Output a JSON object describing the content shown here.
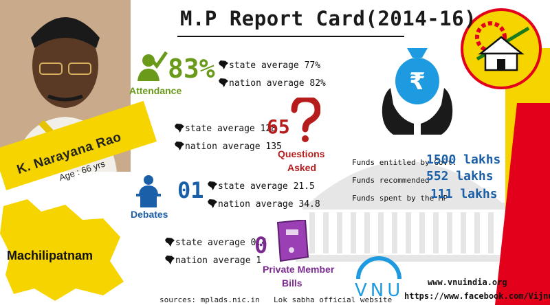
{
  "title": "M.P Report Card(2014-16)",
  "profile": {
    "name": "K. Narayana Rao",
    "age": "Age : 66 yrs",
    "constituency": "Machilipatnam"
  },
  "attendance": {
    "value": "83%",
    "label": "Attendance",
    "state_avg": "state average 77%",
    "nation_avg": "nation average 82%"
  },
  "questions": {
    "value": "65",
    "label_line1": "Questions",
    "label_line2": "Asked",
    "state_avg": "state average 128",
    "nation_avg": "nation average 135"
  },
  "debates": {
    "value": "01",
    "label": "Debates",
    "state_avg": "state average 21.5",
    "nation_avg": "nation average 34.8"
  },
  "bills": {
    "value": "0",
    "label_line1": "Private Member",
    "label_line2": "Bills",
    "state_avg": "state average 0.4",
    "nation_avg": "nation average 1"
  },
  "funds": {
    "entitled_label": "Funds entitled by Govt.",
    "entitled_value": "1500 lakhs",
    "recommended_label": "Funds recommended",
    "recommended_value": "552 lakhs",
    "spent_label": "Funds spent by the MP",
    "spent_value": "111 lakhs"
  },
  "footer": {
    "sources": "sources: mplads.nic.in",
    "loksabha": "Lok sabha official website",
    "website": "www.vnuindia.org",
    "facebook": "https://www.facebook.com/Vijnu",
    "brand": "VNU"
  },
  "colors": {
    "party_yellow": "#f5d400",
    "party_red": "#e2001a",
    "green": "#6a9a1a",
    "red": "#b71c1c",
    "blue": "#1a5fa8",
    "purple": "#7b2b8f"
  }
}
